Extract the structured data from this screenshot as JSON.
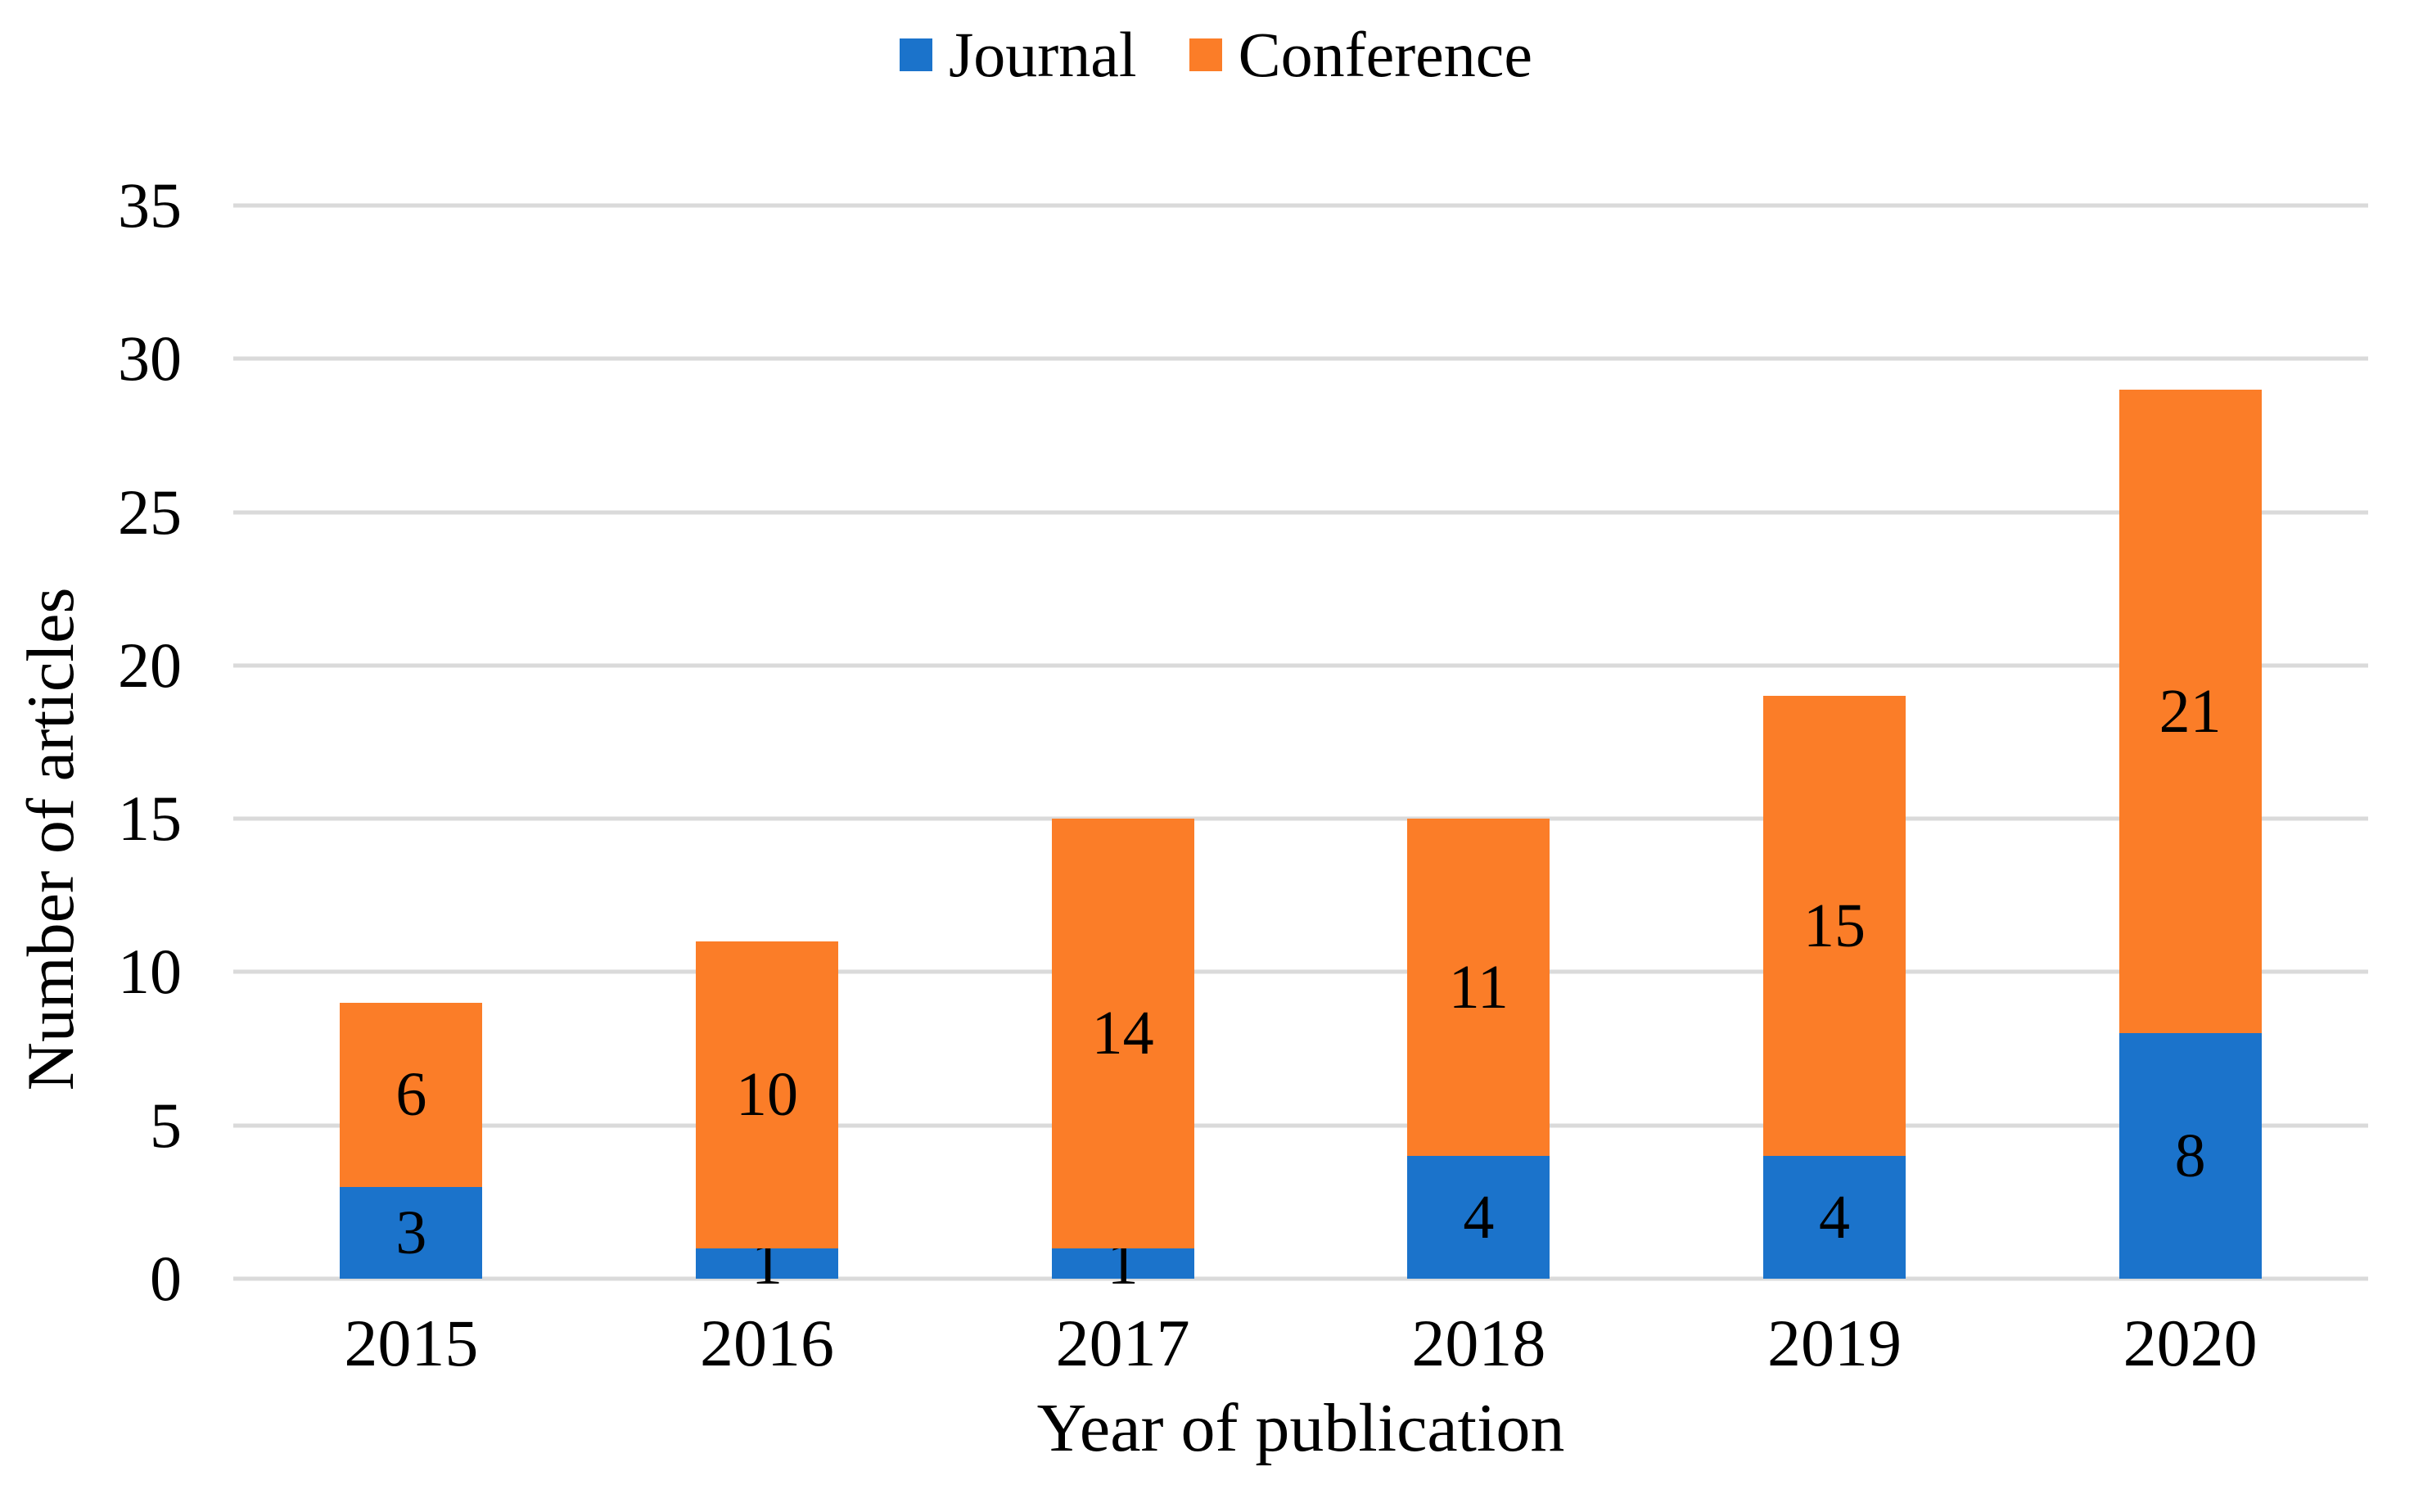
{
  "chart_data": {
    "type": "bar",
    "stacked": true,
    "title": "",
    "xlabel": "Year of publication",
    "ylabel": "Number of articles",
    "categories": [
      "2015",
      "2016",
      "2017",
      "2018",
      "2019",
      "2020"
    ],
    "series": [
      {
        "name": "Journal",
        "color": "#1B73CB",
        "values": [
          3,
          1,
          1,
          4,
          4,
          8
        ]
      },
      {
        "name": "Conference",
        "color": "#FB7D28",
        "values": [
          6,
          10,
          14,
          11,
          15,
          21
        ]
      }
    ],
    "totals": [
      9,
      11,
      15,
      15,
      19,
      29
    ],
    "ylim": [
      0,
      35
    ],
    "yticks": [
      0,
      5,
      10,
      15,
      20,
      25,
      30,
      35
    ],
    "grid": true,
    "gridline_color": "#DADADA",
    "text_color": "#000000",
    "background_color": "#FFFFFF",
    "legend_position": "top-center",
    "data_label_color": "#000000"
  }
}
